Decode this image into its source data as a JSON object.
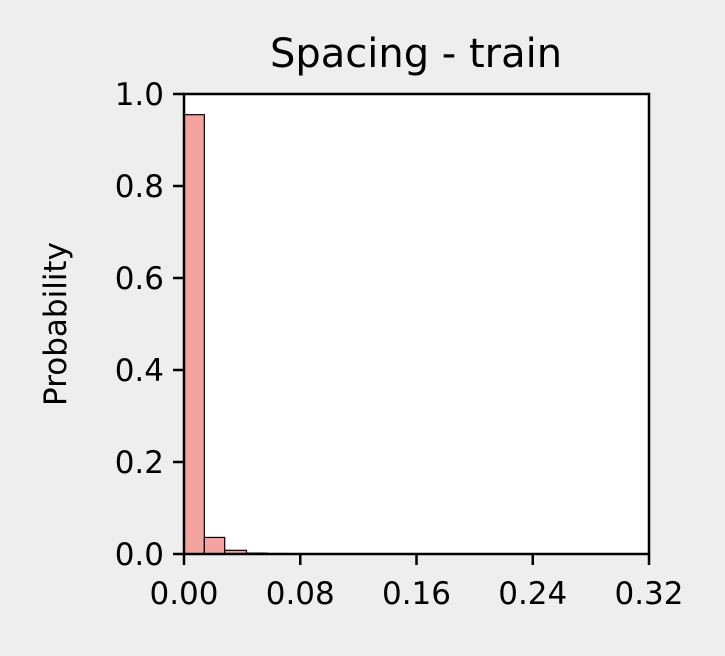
{
  "chart_data": {
    "type": "bar",
    "title": "Spacing - train",
    "xlabel": "",
    "ylabel": "Probability",
    "xlim": [
      0.0,
      0.32
    ],
    "ylim": [
      0.0,
      1.0
    ],
    "xticks": [
      "0.00",
      "0.08",
      "0.16",
      "0.24",
      "0.32"
    ],
    "yticks": [
      "0.0",
      "0.2",
      "0.4",
      "0.6",
      "0.8",
      "1.0"
    ],
    "grid": false,
    "bar_color": "#f4a4a0",
    "bar_edge_color": "#000000",
    "bins": [
      {
        "x0": 0.0,
        "x1": 0.014,
        "value": 0.955
      },
      {
        "x0": 0.014,
        "x1": 0.028,
        "value": 0.036
      },
      {
        "x0": 0.028,
        "x1": 0.043,
        "value": 0.008
      },
      {
        "x0": 0.043,
        "x1": 0.057,
        "value": 0.002
      },
      {
        "x0": 0.057,
        "x1": 0.071,
        "value": 0.001
      }
    ]
  }
}
